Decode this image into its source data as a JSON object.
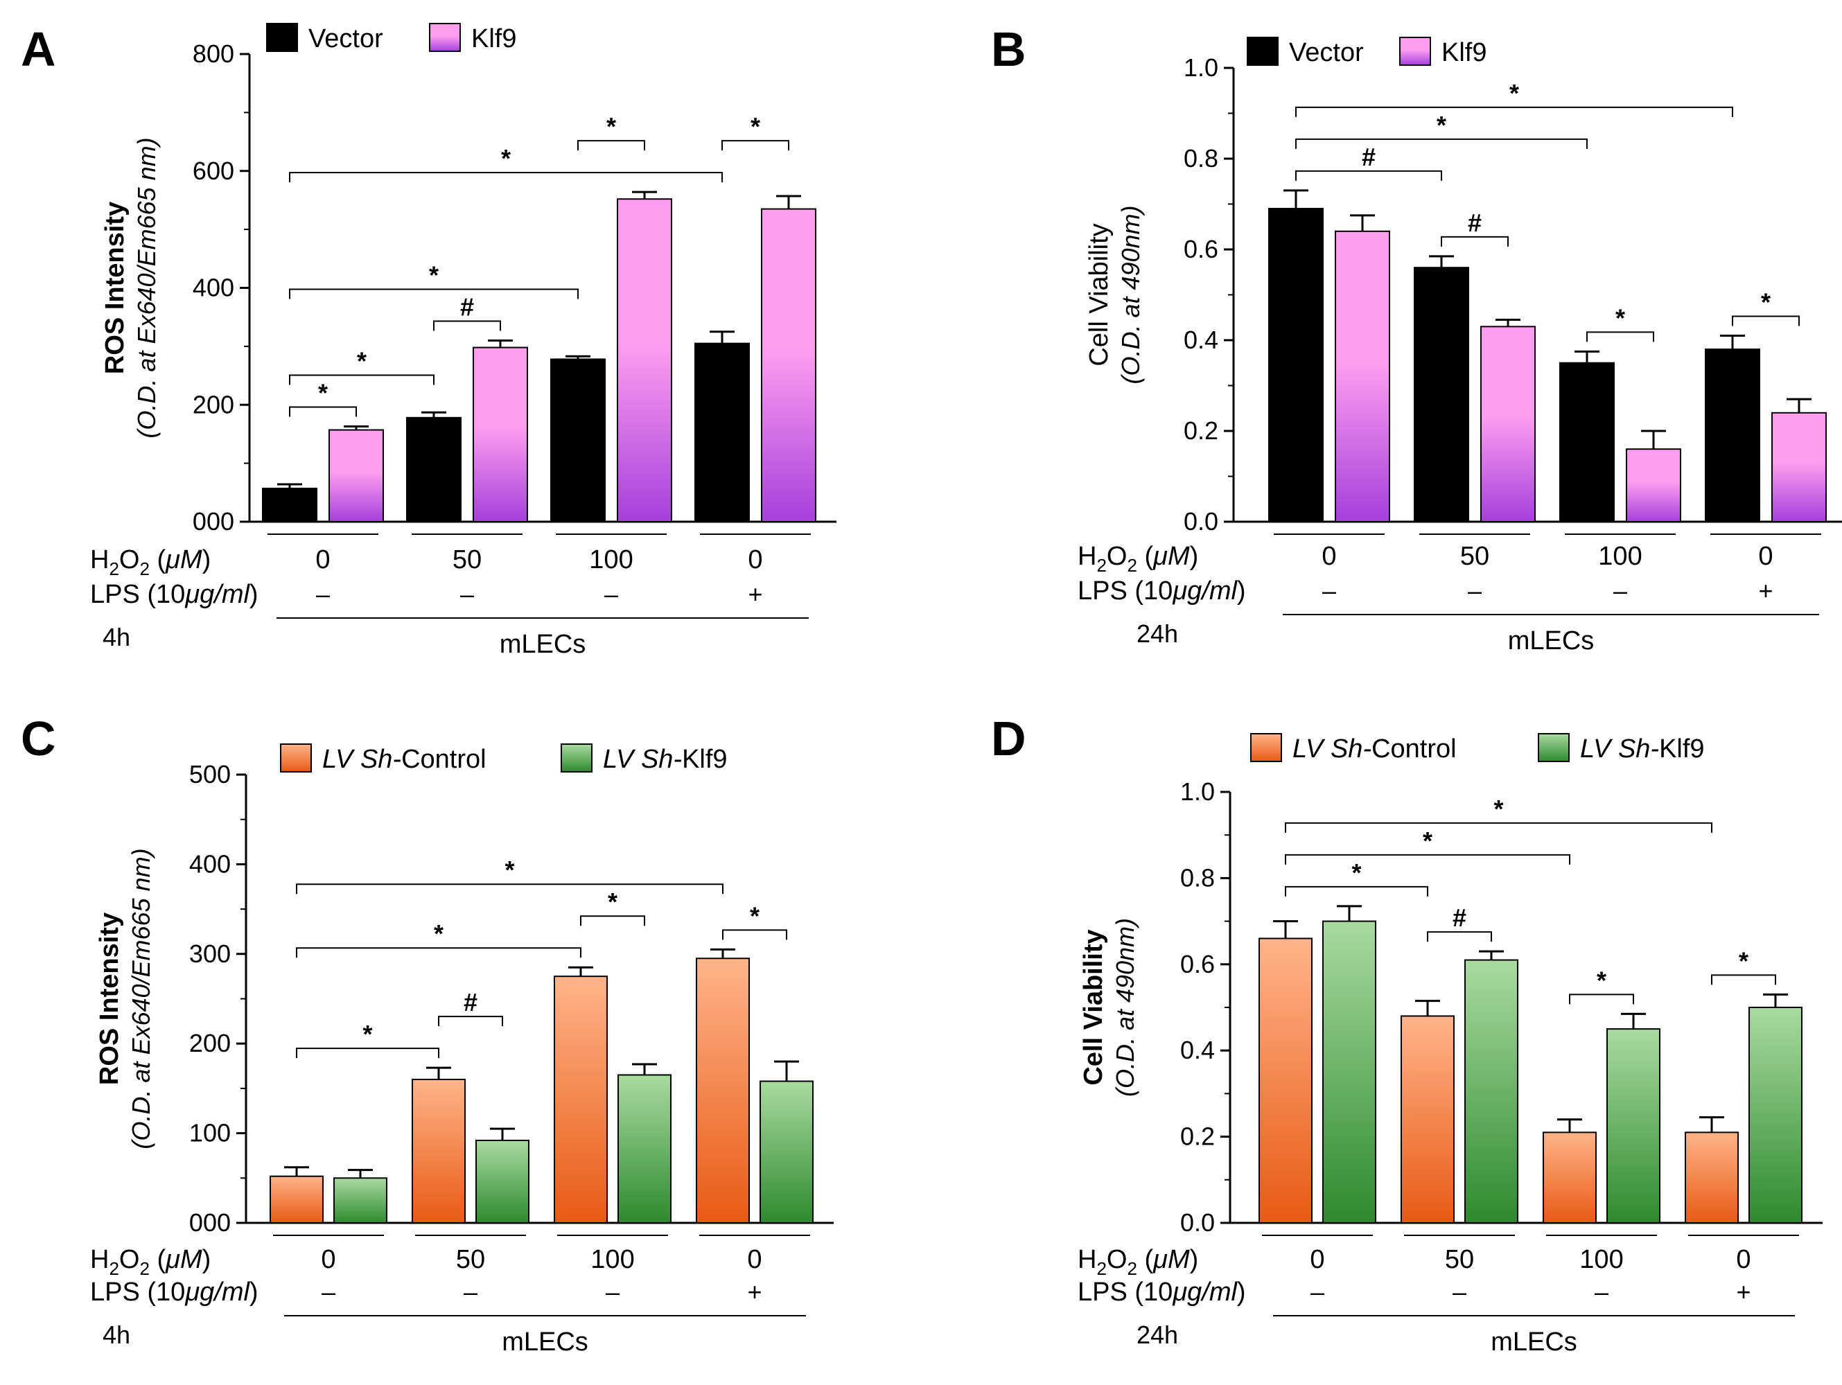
{
  "colors": {
    "vector": "#000000",
    "klf9_light": "#ff9ef0",
    "klf9_dark": "#a63fdc",
    "control_light": "#ffb48a",
    "control_dark": "#e85a14",
    "shklf9_light": "#a9dba0",
    "shklf9_dark": "#2e8a2e"
  },
  "groups": [
    "0",
    "50",
    "100",
    "0"
  ],
  "lps": [
    "–",
    "–",
    "–",
    "+"
  ],
  "cell_label": "mLECs",
  "chart_data": [
    {
      "panel": "A",
      "type": "bar",
      "ylabel": "ROS Intensity",
      "ylabel2": "(O.D. at Ex640/Em665 nm)",
      "ylim": [
        0,
        800
      ],
      "yticks": [
        "000",
        "200",
        "400",
        "600",
        "800"
      ],
      "time": "4h",
      "row1_label": "H2O2 (μM)",
      "row2_label": "LPS (10μg/ml)",
      "series": [
        {
          "name": "Vector",
          "values": [
            57,
            178,
            278,
            305
          ],
          "errors": [
            7,
            9,
            5,
            20
          ]
        },
        {
          "name": "Klf9",
          "values": [
            157,
            298,
            552,
            535
          ],
          "errors": [
            6,
            12,
            12,
            22
          ]
        }
      ],
      "annotations": [
        {
          "label": "*",
          "from": [
            0,
            0
          ],
          "to": [
            0,
            1
          ]
        },
        {
          "label": "*",
          "from": [
            0,
            0
          ],
          "to": [
            1,
            0
          ]
        },
        {
          "label": "#",
          "from": [
            1,
            0
          ],
          "to": [
            1,
            1
          ]
        },
        {
          "label": "*",
          "from": [
            0,
            0
          ],
          "to": [
            2,
            0
          ]
        },
        {
          "label": "*",
          "from": [
            0,
            0
          ],
          "to": [
            3,
            0
          ]
        },
        {
          "label": "*",
          "from": [
            2,
            0
          ],
          "to": [
            2,
            1
          ]
        },
        {
          "label": "*",
          "from": [
            3,
            0
          ],
          "to": [
            3,
            1
          ]
        }
      ]
    },
    {
      "panel": "B",
      "type": "bar",
      "ylabel": "Cell Viability",
      "ylabel2": "(O.D. at 490nm)",
      "ylim": [
        0,
        1.0
      ],
      "yticks": [
        "0.0",
        "0.2",
        "0.4",
        "0.6",
        "0.8",
        "1.0"
      ],
      "time": "24h",
      "row1_label": "H2O2 (μM)",
      "row2_label": "LPS (10μg/ml)",
      "series": [
        {
          "name": "Vector",
          "values": [
            0.69,
            0.56,
            0.35,
            0.38
          ],
          "errors": [
            0.04,
            0.025,
            0.025,
            0.03
          ]
        },
        {
          "name": "Klf9",
          "values": [
            0.64,
            0.43,
            0.16,
            0.24
          ],
          "errors": [
            0.035,
            0.015,
            0.04,
            0.03
          ]
        }
      ],
      "annotations": [
        {
          "label": "#",
          "from": [
            0,
            0
          ],
          "to": [
            1,
            0
          ]
        },
        {
          "label": "#",
          "from": [
            1,
            0
          ],
          "to": [
            1,
            1
          ]
        },
        {
          "label": "*",
          "from": [
            0,
            0
          ],
          "to": [
            2,
            0
          ]
        },
        {
          "label": "*",
          "from": [
            0,
            0
          ],
          "to": [
            3,
            0
          ]
        },
        {
          "label": "*",
          "from": [
            2,
            0
          ],
          "to": [
            2,
            1
          ]
        },
        {
          "label": "*",
          "from": [
            3,
            0
          ],
          "to": [
            3,
            1
          ]
        }
      ]
    },
    {
      "panel": "C",
      "type": "bar",
      "ylabel": "ROS Intensity",
      "ylabel2": "(O.D. at Ex640/Em665 nm)",
      "ylim": [
        0,
        500
      ],
      "yticks": [
        "000",
        "100",
        "200",
        "300",
        "400",
        "500"
      ],
      "time": "4h",
      "row1_label": "H2O2 (μM)",
      "row2_label": "LPS (10μg/ml)",
      "series": [
        {
          "name": "LV Sh-Control",
          "values": [
            52,
            160,
            275,
            295
          ],
          "errors": [
            10,
            13,
            10,
            10
          ]
        },
        {
          "name": "LV Sh-Klf9",
          "values": [
            50,
            92,
            165,
            158
          ],
          "errors": [
            9,
            13,
            12,
            22
          ]
        }
      ],
      "annotations": [
        {
          "label": "*",
          "from": [
            0,
            0
          ],
          "to": [
            1,
            0
          ]
        },
        {
          "label": "#",
          "from": [
            1,
            0
          ],
          "to": [
            1,
            1
          ]
        },
        {
          "label": "*",
          "from": [
            0,
            0
          ],
          "to": [
            2,
            0
          ]
        },
        {
          "label": "*",
          "from": [
            2,
            0
          ],
          "to": [
            2,
            1
          ]
        },
        {
          "label": "*",
          "from": [
            0,
            0
          ],
          "to": [
            3,
            0
          ]
        },
        {
          "label": "*",
          "from": [
            3,
            0
          ],
          "to": [
            3,
            1
          ]
        }
      ]
    },
    {
      "panel": "D",
      "type": "bar",
      "ylabel": "Cell Viability",
      "ylabel2": "(O.D. at 490nm)",
      "ylim": [
        0,
        1.0
      ],
      "yticks": [
        "0.0",
        "0.2",
        "0.4",
        "0.6",
        "0.8",
        "1.0"
      ],
      "time": "24h",
      "row1_label": "H2O2 (μM)",
      "row2_label": "LPS (10μg/ml)",
      "series": [
        {
          "name": "LV Sh-Control",
          "values": [
            0.66,
            0.48,
            0.21,
            0.21
          ],
          "errors": [
            0.04,
            0.035,
            0.03,
            0.035
          ]
        },
        {
          "name": "LV Sh-Klf9",
          "values": [
            0.7,
            0.61,
            0.45,
            0.5
          ],
          "errors": [
            0.035,
            0.02,
            0.035,
            0.03
          ]
        }
      ],
      "annotations": [
        {
          "label": "*",
          "from": [
            0,
            0
          ],
          "to": [
            1,
            0
          ]
        },
        {
          "label": "#",
          "from": [
            1,
            0
          ],
          "to": [
            1,
            1
          ]
        },
        {
          "label": "*",
          "from": [
            0,
            0
          ],
          "to": [
            2,
            0
          ]
        },
        {
          "label": "*",
          "from": [
            2,
            0
          ],
          "to": [
            2,
            1
          ]
        },
        {
          "label": "*",
          "from": [
            0,
            0
          ],
          "to": [
            3,
            0
          ]
        },
        {
          "label": "*",
          "from": [
            3,
            0
          ],
          "to": [
            3,
            1
          ]
        }
      ]
    }
  ]
}
